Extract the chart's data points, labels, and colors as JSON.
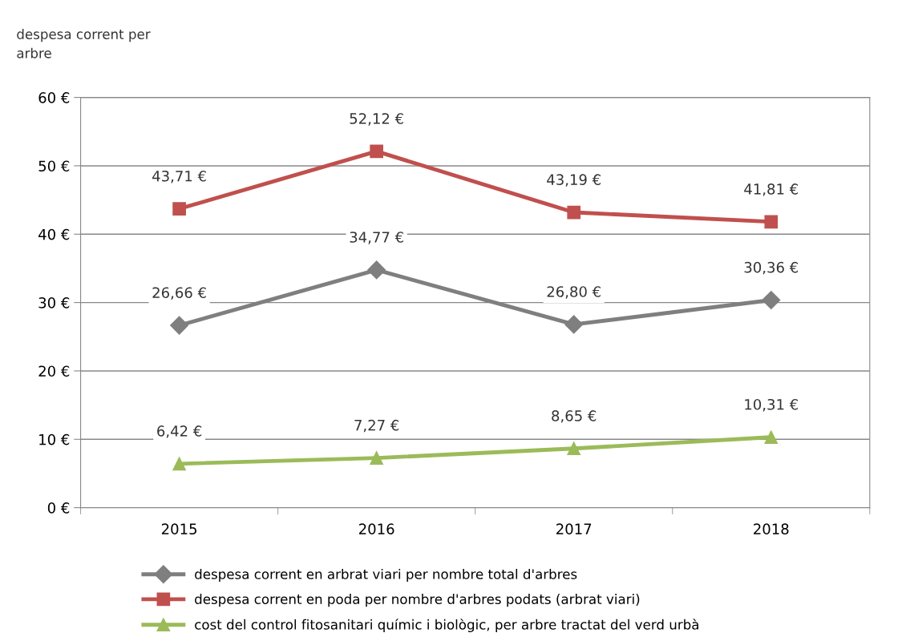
{
  "chart_data": {
    "type": "line",
    "ylabel": "despesa corrent per\narbre",
    "categories": [
      "2015",
      "2016",
      "2017",
      "2018"
    ],
    "series": [
      {
        "name": "despesa corrent en arbrat viari per nombre total d'arbres",
        "color": "#7f7f7f",
        "marker": "diamond",
        "values": [
          26.66,
          34.77,
          26.8,
          30.36
        ],
        "value_labels": [
          "26,66 €",
          "34,77 €",
          "26,80 €",
          "30,36 €"
        ]
      },
      {
        "name": "despesa corrent en poda per nombre d'arbres podats (arbrat viari)",
        "color": "#c0504d",
        "marker": "square",
        "values": [
          43.71,
          52.12,
          43.19,
          41.81
        ],
        "value_labels": [
          "43,71 €",
          "52,12 €",
          "43,19 €",
          "41,81 €"
        ]
      },
      {
        "name": "cost del control fitosanitari químic i biològic, per arbre tractat del verd urbà",
        "color": "#9bbb59",
        "marker": "triangle",
        "values": [
          6.42,
          7.27,
          8.65,
          10.31
        ],
        "value_labels": [
          "6,42 €",
          "7,27 €",
          "8,65 €",
          "10,31 €"
        ]
      }
    ],
    "ylim": [
      0,
      60
    ],
    "yticks": [
      {
        "value": 0,
        "label": "0 €"
      },
      {
        "value": 10,
        "label": "10 €"
      },
      {
        "value": 20,
        "label": "20 €"
      },
      {
        "value": 30,
        "label": "30 €"
      },
      {
        "value": 40,
        "label": "40 €"
      },
      {
        "value": 50,
        "label": "50 €"
      },
      {
        "value": 60,
        "label": "60 €"
      }
    ],
    "grid": "y",
    "legend": "bottom",
    "line_style": "solid"
  }
}
